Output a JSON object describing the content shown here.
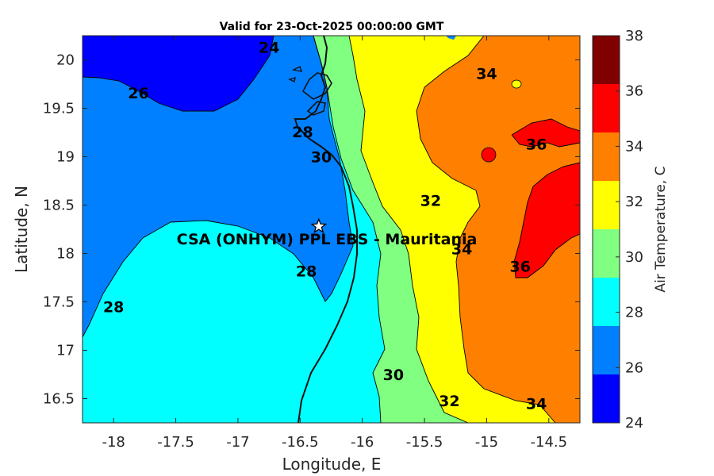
{
  "title": "Valid for 23-Oct-2025 00:00:00 GMT",
  "xlabel": "Longitude, E",
  "ylabel": "Latitude, N",
  "site_label": "CSA (ONHYM) PPL EBS  - Mauritania",
  "colorbar": {
    "label": "Air Temperature, C",
    "ticks": [
      "24",
      "26",
      "28",
      "30",
      "32",
      "34",
      "36",
      "38"
    ],
    "colors": [
      "#0000ff",
      "#0080ff",
      "#00ffff",
      "#80ff80",
      "#ffff00",
      "#ff8000",
      "#ff0000",
      "#800000"
    ]
  },
  "chart_data": {
    "type": "contour-map",
    "xlim": [
      -18.25,
      -14.25
    ],
    "ylim": [
      16.25,
      20.25
    ],
    "x_ticks": [
      -18,
      -17.5,
      -17,
      -16.5,
      -16,
      -15.5,
      -15,
      -14.5
    ],
    "x_tick_labels": [
      "-18",
      "-17.5",
      "-17",
      "-16.5",
      "-16",
      "-15.5",
      "-15",
      "-14.5"
    ],
    "y_ticks": [
      16.5,
      17,
      17.5,
      18,
      18.5,
      19,
      19.5,
      20
    ],
    "y_tick_labels": [
      "16.5",
      "17",
      "17.5",
      "18",
      "18.5",
      "19",
      "19.5",
      "20"
    ],
    "levels": [
      24,
      26,
      28,
      30,
      32,
      34,
      36,
      38
    ],
    "contour_labels": [
      {
        "text": "24",
        "lon": -16.75,
        "lat": 20.13
      },
      {
        "text": "26",
        "lon": -17.8,
        "lat": 19.66
      },
      {
        "text": "28",
        "lon": -16.48,
        "lat": 19.26
      },
      {
        "text": "30",
        "lon": -16.33,
        "lat": 19.0
      },
      {
        "text": "32",
        "lon": -15.45,
        "lat": 18.55
      },
      {
        "text": "34",
        "lon": -15.0,
        "lat": 19.86
      },
      {
        "text": "36",
        "lon": -14.6,
        "lat": 19.13
      },
      {
        "text": "28",
        "lon": -16.45,
        "lat": 17.82
      },
      {
        "text": "28",
        "lon": -18.0,
        "lat": 17.45
      },
      {
        "text": "34",
        "lon": -15.2,
        "lat": 18.05
      },
      {
        "text": "36",
        "lon": -14.73,
        "lat": 17.87
      },
      {
        "text": "30",
        "lon": -15.75,
        "lat": 16.75
      },
      {
        "text": "32",
        "lon": -15.3,
        "lat": 16.48
      },
      {
        "text": "34",
        "lon": -14.6,
        "lat": 16.45
      }
    ],
    "site": {
      "lon": -16.35,
      "lat": 18.28,
      "marker": "white-star"
    }
  }
}
